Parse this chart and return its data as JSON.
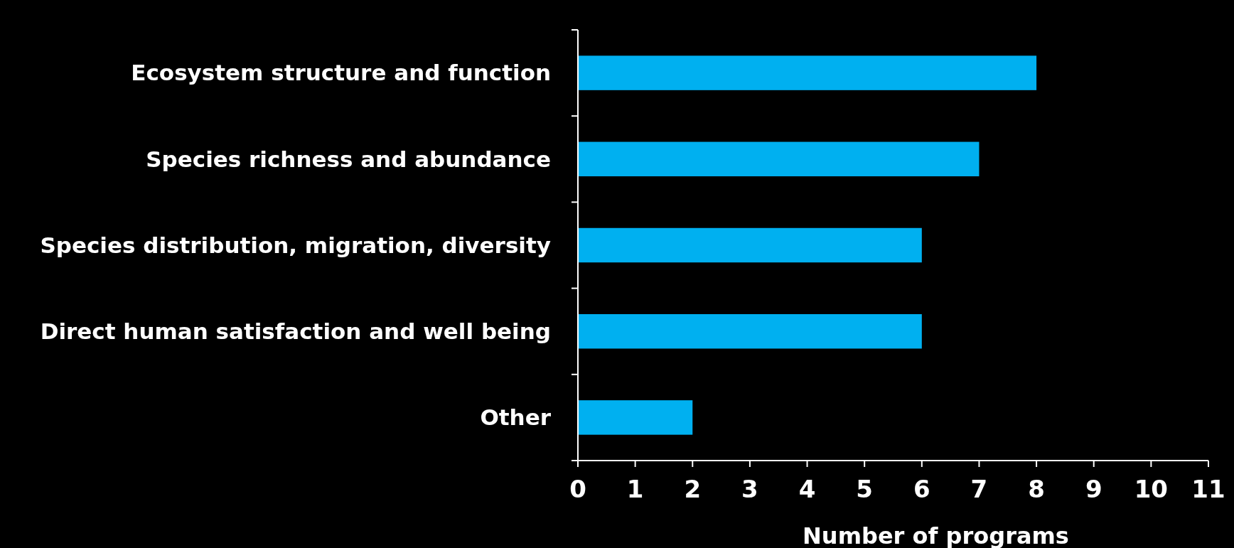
{
  "chart_data": {
    "type": "bar",
    "orientation": "horizontal",
    "xlabel": "Number of programs",
    "categories": [
      "Ecosystem structure and function",
      "Species richness and abundance",
      "Species distribution, migration, diversity",
      "Direct human satisfaction and well being",
      "Other"
    ],
    "values": [
      8,
      7,
      6,
      6,
      2
    ],
    "color": "#00b0f0",
    "xlim": [
      0,
      11
    ],
    "xticks": [
      0,
      1,
      2,
      3,
      4,
      5,
      6,
      7,
      8,
      9,
      10,
      11
    ],
    "grid": false
  }
}
